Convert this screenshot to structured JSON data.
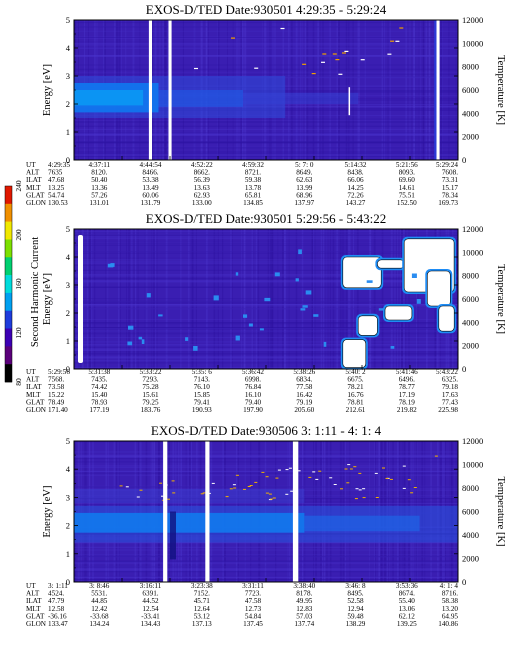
{
  "chart_data": [
    {
      "type": "heatmap",
      "title": "EXOS-D/TED   Date:930501  4:29:35 - 5:29:24",
      "ylabel": "Energy [eV]",
      "y2label": "Temperature [K]",
      "ylim": [
        0,
        5
      ],
      "y2lim": [
        0,
        12000
      ],
      "yticks": [
        "0",
        "1",
        "2",
        "3",
        "4",
        "5"
      ],
      "y2ticks": [
        "0",
        "2000",
        "4000",
        "6000",
        "8000",
        "10000",
        "12000"
      ],
      "data_gaps_percent_of_time": [
        [
          19.5,
          20.3
        ],
        [
          24.6,
          25.4
        ],
        [
          94.4,
          95.2
        ]
      ],
      "band_description": "enhanced 2nd harmonic current band near 1.9-2.6 eV early in pass, fading later",
      "ephemeris": {
        "labels": [
          "UT",
          "ALT",
          "ILAT",
          "MLT",
          "GLAT",
          "GLON"
        ],
        "columns": [
          [
            "4:29:35",
            "7635",
            "47.68",
            "13.25",
            "54.74",
            "130.53"
          ],
          [
            "4:37:11",
            "8120.",
            "50.40",
            "13.36",
            "57.26",
            "131.01"
          ],
          [
            "4:44:54",
            "8466.",
            "53.38",
            "13.49",
            "60.06",
            "131.79"
          ],
          [
            "4:52:22",
            "8662.",
            "56.39",
            "13.63",
            "62.93",
            "133.00"
          ],
          [
            "4:59:32",
            "8721.",
            "59.38",
            "13.78",
            "65.81",
            "134.85"
          ],
          [
            "5: 7: 0",
            "8649.",
            "62.63",
            "13.99",
            "68.96",
            "137.97"
          ],
          [
            "5:14:32",
            "8438.",
            "66.06",
            "14.25",
            "72.26",
            "143.27"
          ],
          [
            "5:21:56",
            "8093.",
            "69.60",
            "14.61",
            "75.51",
            "152.50"
          ],
          [
            "5:29:24",
            "7608.",
            "73.31",
            "15.17",
            "78.34",
            "169.73"
          ]
        ]
      }
    },
    {
      "type": "heatmap",
      "title": "EXOS-D/TED   Date:930501  5:29:56 - 5:43:22",
      "ylabel": "Energy [eV]",
      "y2label": "Temperature [K]",
      "ylim": [
        0,
        5
      ],
      "y2lim": [
        0,
        12000
      ],
      "yticks": [
        "0",
        "1",
        "2",
        "3",
        "4",
        "5"
      ],
      "y2ticks": [
        "0",
        "2000",
        "4000",
        "6000",
        "8000",
        "10000",
        "12000"
      ],
      "colorbar": {
        "label": "Second Harmonic Current",
        "ticks": [
          "80",
          "120",
          "160",
          "200",
          "240"
        ],
        "colors": [
          "#000000",
          "#5a007a",
          "#3c00b4",
          "#1e3cdc",
          "#00a0f0",
          "#00dcdc",
          "#00d070",
          "#7ce000",
          "#f0e800",
          "#f09000",
          "#e01800"
        ]
      },
      "ephemeris": {
        "labels": [
          "UT",
          "ALT",
          "ILAT",
          "MLT",
          "GLAT",
          "GLON"
        ],
        "columns": [
          [
            "5:29:56",
            "7568.",
            "73.58",
            "15.22",
            "78.49",
            "171.40"
          ],
          [
            "5:31:38",
            "7435.",
            "74.42",
            "15.40",
            "78.93",
            "177.19"
          ],
          [
            "5:33:22",
            "7293.",
            "75.28",
            "15.61",
            "79.25",
            "183.76"
          ],
          [
            "5:35: 6",
            "7143.",
            "76.10",
            "15.85",
            "79.41",
            "190.93"
          ],
          [
            "5:36:42",
            "6998.",
            "76.84",
            "16.10",
            "79.40",
            "197.90"
          ],
          [
            "5:38:26",
            "6834.",
            "77.58",
            "16.42",
            "79.19",
            "205.60"
          ],
          [
            "5:40: 2",
            "6675.",
            "78.21",
            "16.76",
            "78.81",
            "212.61"
          ],
          [
            "5:41:46",
            "6496.",
            "78.77",
            "17.19",
            "78.19",
            "219.82"
          ],
          [
            "5:43:22",
            "6325.",
            "79.18",
            "17.63",
            "77.43",
            "225.98"
          ]
        ]
      }
    },
    {
      "type": "heatmap",
      "title": "EXOS-D/TED   Date:930506  3: 1:11 - 4: 1: 4",
      "ylabel": "Energy [eV]",
      "y2label": "Temperature [K]",
      "ylim": [
        0,
        5
      ],
      "y2lim": [
        0,
        12000
      ],
      "yticks": [
        "0",
        "1",
        "2",
        "3",
        "4",
        "5"
      ],
      "y2ticks": [
        "0",
        "2000",
        "4000",
        "6000",
        "8000",
        "10000",
        "12000"
      ],
      "data_gaps_percent_of_time": [
        [
          23.2,
          24.3
        ],
        [
          34.2,
          35.3
        ],
        [
          57.0,
          58.4
        ]
      ],
      "band_description": "strong 2nd harmonic current band near 1.8-2.5 eV throughout pass",
      "ephemeris": {
        "labels": [
          "UT",
          "ALT",
          "ILAT",
          "MLT",
          "GLAT",
          "GLON"
        ],
        "columns": [
          [
            "3: 1:11",
            "4524.",
            "47.79",
            "12.58",
            "-36.16",
            "133.47"
          ],
          [
            "3: 8:46",
            "5531.",
            "44.85",
            "12.42",
            "-33.68",
            "134.24"
          ],
          [
            "3:16:11",
            "6391.",
            "44.52",
            "12.54",
            "-33.41",
            "134.43"
          ],
          [
            "3:23:38",
            "7152.",
            "45.71",
            "12.64",
            "53.12",
            "137.13"
          ],
          [
            "3:31:11",
            "7723.",
            "47.58",
            "12.73",
            "54.84",
            "137.45"
          ],
          [
            "3:38:40",
            "8178.",
            "49.95",
            "12.83",
            "57.03",
            "137.74"
          ],
          [
            "3:46: 8",
            "8495.",
            "52.58",
            "12.94",
            "59.48",
            "138.29"
          ],
          [
            "3:53:36",
            "8674.",
            "55.40",
            "13.06",
            "62.12",
            "139.25"
          ],
          [
            "4: 1: 4",
            "8716.",
            "58.38",
            "13.20",
            "64.95",
            "140.86"
          ]
        ]
      }
    }
  ]
}
